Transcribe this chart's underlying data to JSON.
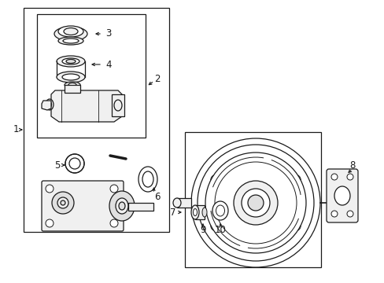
{
  "bg_color": "#ffffff",
  "lc": "#1a1a1a",
  "fig_width": 4.89,
  "fig_height": 3.6,
  "dpi": 100
}
